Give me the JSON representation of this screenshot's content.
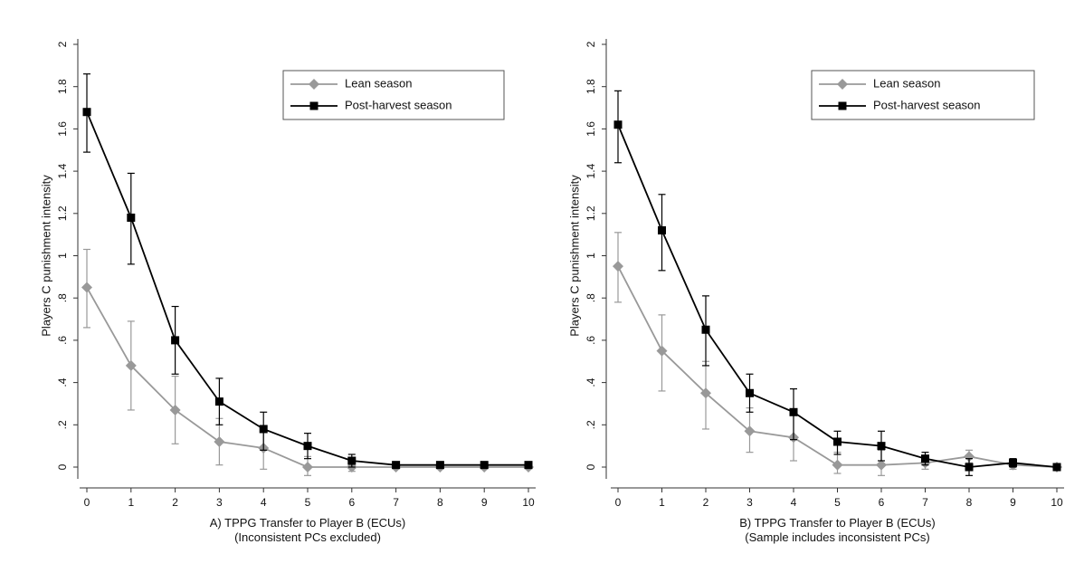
{
  "chart_data": [
    {
      "type": "line",
      "ylabel": "Players C punishment intensity",
      "xlabel": "A) TPPG Transfer to Player B (ECUs)",
      "xlabel2": "(Inconsistent PCs excluded)",
      "x": [
        0,
        1,
        2,
        3,
        4,
        5,
        6,
        7,
        8,
        9,
        10
      ],
      "xlim": [
        0,
        10
      ],
      "ylim": [
        0,
        2
      ],
      "yticks": [
        0,
        0.2,
        0.4,
        0.6,
        0.8,
        1,
        1.2,
        1.4,
        1.6,
        1.8,
        2
      ],
      "ytick_labels": [
        "0",
        ".2",
        ".4",
        ".6",
        ".8",
        "1",
        "1.2",
        "1.4",
        "1.6",
        "1.8",
        "2"
      ],
      "xtick_labels": [
        "0",
        "1",
        "2",
        "3",
        "4",
        "5",
        "6",
        "7",
        "8",
        "9",
        "10"
      ],
      "grid": false,
      "legend": "top-right",
      "series": [
        {
          "name": "Lean season",
          "color": "#999999",
          "marker": "diamond",
          "values": [
            0.85,
            0.48,
            0.27,
            0.12,
            0.09,
            0.0,
            0.0,
            0.0,
            0.0,
            0.0,
            0.0
          ],
          "ci_low": [
            0.66,
            0.27,
            0.11,
            0.01,
            -0.01,
            -0.04,
            -0.02,
            0.0,
            0.0,
            0.0,
            0.0
          ],
          "ci_high": [
            1.03,
            0.69,
            0.43,
            0.23,
            0.19,
            0.05,
            0.03,
            0.0,
            0.0,
            0.0,
            0.0
          ]
        },
        {
          "name": "Post-harvest season",
          "color": "#000000",
          "marker": "square",
          "values": [
            1.68,
            1.18,
            0.6,
            0.31,
            0.18,
            0.1,
            0.03,
            0.01,
            0.01,
            0.01,
            0.01
          ],
          "ci_low": [
            1.49,
            0.96,
            0.44,
            0.2,
            0.08,
            0.04,
            0.0,
            0.0,
            0.0,
            0.0,
            0.0
          ],
          "ci_high": [
            1.86,
            1.39,
            0.76,
            0.42,
            0.26,
            0.16,
            0.06,
            0.02,
            0.02,
            0.02,
            0.02
          ]
        }
      ]
    },
    {
      "type": "line",
      "ylabel": "Players C punishment intensity",
      "xlabel": "B) TPPG Transfer to Player B (ECUs)",
      "xlabel2": "(Sample includes inconsistent PCs)",
      "x": [
        0,
        1,
        2,
        3,
        4,
        5,
        6,
        7,
        8,
        9,
        10
      ],
      "xlim": [
        0,
        10
      ],
      "ylim": [
        0,
        2
      ],
      "yticks": [
        0,
        0.2,
        0.4,
        0.6,
        0.8,
        1,
        1.2,
        1.4,
        1.6,
        1.8,
        2
      ],
      "ytick_labels": [
        "0",
        ".2",
        ".4",
        ".6",
        ".8",
        "1",
        "1.2",
        "1.4",
        "1.6",
        "1.8",
        "2"
      ],
      "xtick_labels": [
        "0",
        "1",
        "2",
        "3",
        "4",
        "5",
        "6",
        "7",
        "8",
        "9",
        "10"
      ],
      "grid": false,
      "legend": "top-right",
      "series": [
        {
          "name": "Lean season",
          "color": "#999999",
          "marker": "diamond",
          "values": [
            0.95,
            0.55,
            0.35,
            0.17,
            0.14,
            0.01,
            0.01,
            0.02,
            0.05,
            0.01,
            0.0
          ],
          "ci_low": [
            0.78,
            0.36,
            0.18,
            0.07,
            0.03,
            -0.03,
            -0.04,
            -0.01,
            0.02,
            -0.01,
            0.0
          ],
          "ci_high": [
            1.11,
            0.72,
            0.5,
            0.28,
            0.26,
            0.07,
            0.08,
            0.05,
            0.08,
            0.02,
            0.01
          ]
        },
        {
          "name": "Post-harvest season",
          "color": "#000000",
          "marker": "square",
          "values": [
            1.62,
            1.12,
            0.65,
            0.35,
            0.26,
            0.12,
            0.1,
            0.04,
            0.0,
            0.02,
            0.0
          ],
          "ci_low": [
            1.44,
            0.93,
            0.48,
            0.26,
            0.13,
            0.06,
            0.03,
            0.01,
            -0.04,
            0.0,
            0.0
          ],
          "ci_high": [
            1.78,
            1.29,
            0.81,
            0.44,
            0.37,
            0.17,
            0.17,
            0.07,
            0.04,
            0.04,
            0.01
          ]
        }
      ]
    }
  ]
}
